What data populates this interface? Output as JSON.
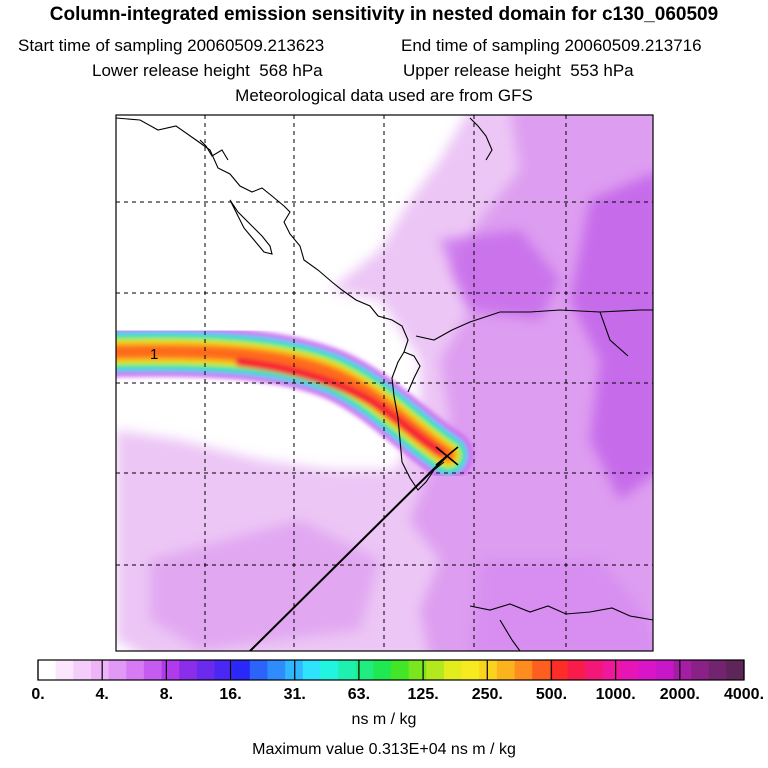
{
  "title": "Column-integrated emission sensitivity in nested domain for c130_060509",
  "header": {
    "start_label": "Start time of sampling",
    "start_value": "20060509.213623",
    "end_label": "End time of sampling",
    "end_value": "20060509.213716",
    "lower_label": "Lower release height",
    "lower_value": "568 hPa",
    "upper_label": "Upper release height",
    "upper_value": "553 hPa",
    "met_text": "Meteorological data used are from GFS"
  },
  "map": {
    "release_marker_label": "1",
    "colors": {
      "background_haze": "#ecc6f5",
      "light_purple": "#dd9bf0",
      "medium_purple": "#c466ea",
      "coastline": "#000000",
      "grid": "#000000"
    }
  },
  "colorbar": {
    "tick_labels": [
      "0.",
      "4.",
      "8.",
      "16.",
      "31.",
      "63.",
      "125.",
      "250.",
      "500.",
      "1000.",
      "2000.",
      "4000."
    ],
    "segment_colors": [
      "#ffffff",
      "#fbe6fd",
      "#f5cdfb",
      "#efb3f8",
      "#e299f6",
      "#d77af3",
      "#c65bf0",
      "#b13bec",
      "#8a2ee9",
      "#6b2aee",
      "#4b27f3",
      "#2a28f8",
      "#2c64fb",
      "#2f8cfd",
      "#2fb7ff",
      "#2fe3ff",
      "#21f5e0",
      "#1ff0b0",
      "#20ec80",
      "#20e850",
      "#42e626",
      "#7ae620",
      "#b4e81e",
      "#e2ec1e",
      "#f7ea1f",
      "#fbd21e",
      "#fdb31e",
      "#fe8c1e",
      "#fe5f1f",
      "#fc2e27",
      "#f71c4a",
      "#f31877",
      "#ef179c",
      "#e516b5",
      "#da15c8",
      "#c817c9",
      "#a51da5",
      "#8a2187",
      "#72246e",
      "#5e2558"
    ],
    "units": "ns m / kg"
  },
  "max_value_text": "Maximum value  0.313E+04 ns m / kg"
}
